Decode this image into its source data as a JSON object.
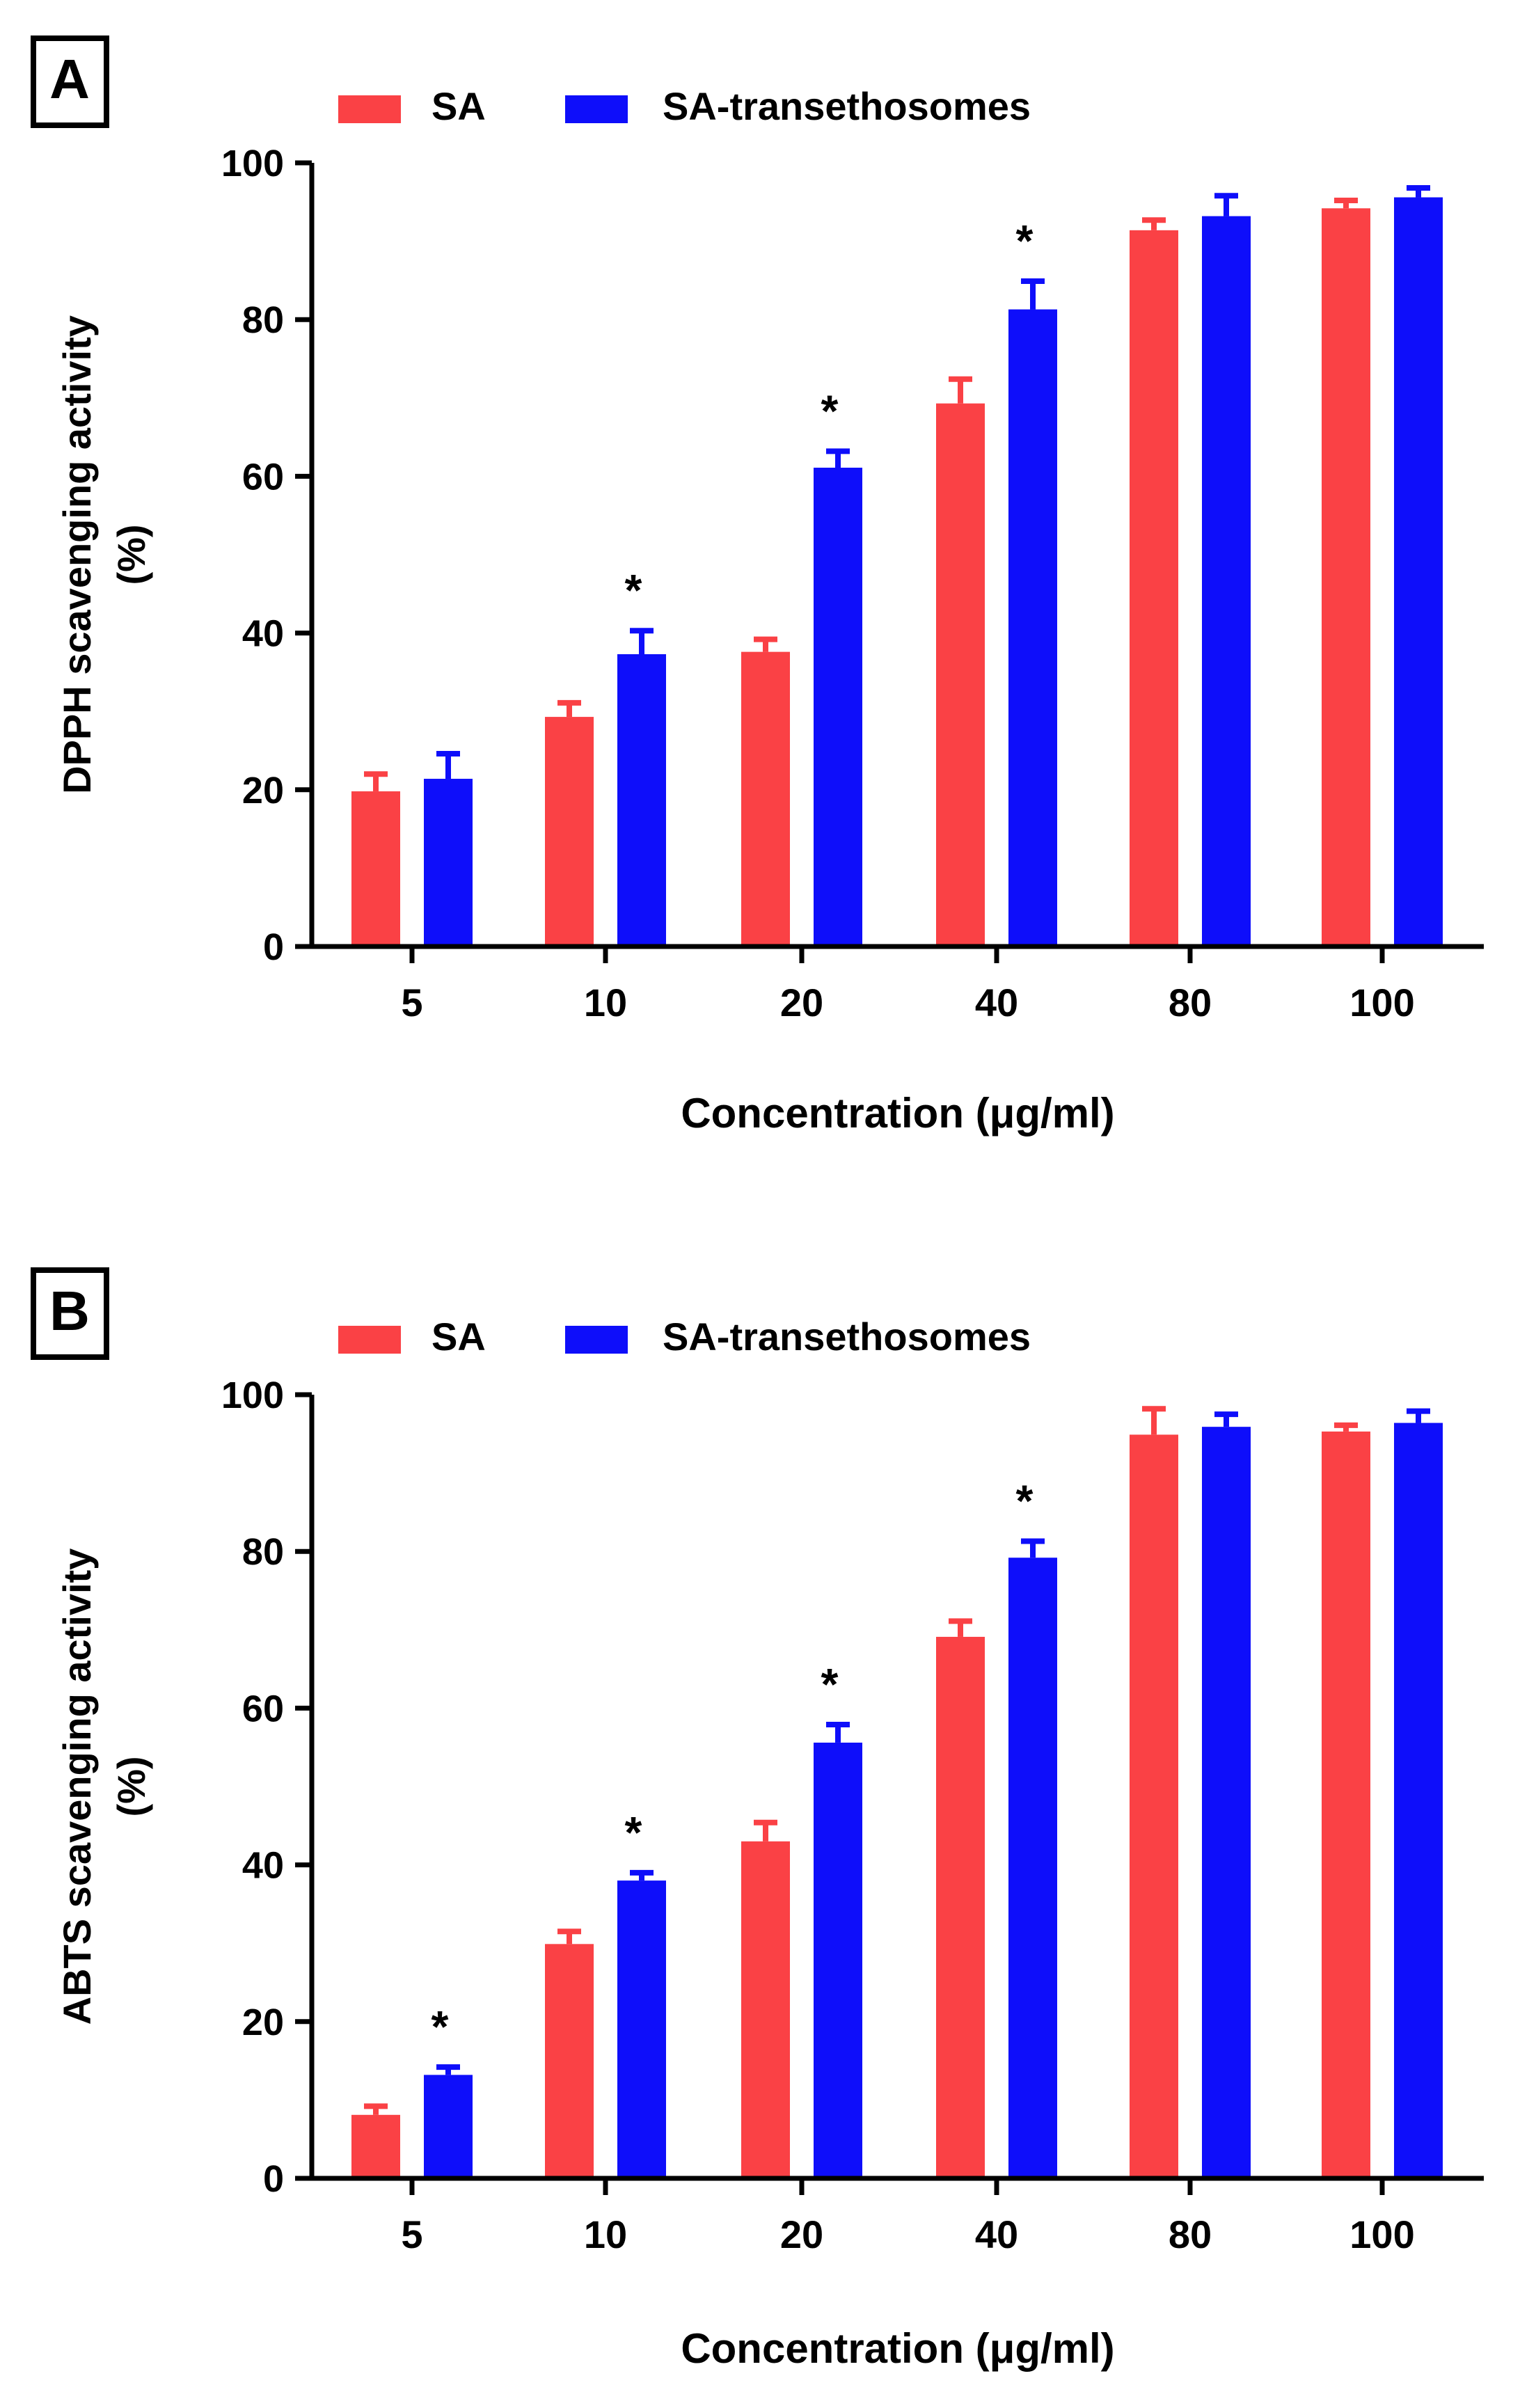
{
  "chart_data": [
    {
      "type": "bar",
      "panel_label": "A",
      "title": "",
      "xlabel": "Concentration (μg/ml)",
      "ylabel_line1": "DPPH scavenging activity",
      "ylabel_line2": "(%)",
      "ylim": [
        0,
        100
      ],
      "yticks": [
        0,
        20,
        40,
        60,
        80,
        100
      ],
      "categories": [
        "5",
        "10",
        "20",
        "40",
        "80",
        "100"
      ],
      "series": [
        {
          "name": "SA",
          "color": "#fa4145",
          "values": [
            19.8,
            29.3,
            37.6,
            69.3,
            91.4,
            94.2
          ],
          "errors": [
            2.2,
            1.8,
            1.6,
            3.1,
            1.3,
            1.0
          ]
        },
        {
          "name": "SA-transethosomes",
          "color": "#0e0efa",
          "values": [
            21.4,
            37.3,
            61.1,
            81.3,
            93.2,
            95.6
          ],
          "errors": [
            3.2,
            3.0,
            2.1,
            3.6,
            2.6,
            1.2
          ]
        }
      ],
      "significance_marker": "*",
      "significant_categories": [
        "10",
        "20",
        "40"
      ],
      "legend_position": "top-left"
    },
    {
      "type": "bar",
      "panel_label": "B",
      "title": "",
      "xlabel": "Concentration (μg/ml)",
      "ylabel_line1": "ABTS scavenging activity",
      "ylabel_line2": "(%)",
      "ylim": [
        0,
        100
      ],
      "yticks": [
        0,
        20,
        40,
        60,
        80,
        100
      ],
      "categories": [
        "5",
        "10",
        "20",
        "40",
        "80",
        "100"
      ],
      "series": [
        {
          "name": "SA",
          "color": "#fa4145",
          "values": [
            8.1,
            29.9,
            43.0,
            69.1,
            94.9,
            95.3
          ],
          "errors": [
            1.1,
            1.6,
            2.4,
            2.0,
            3.3,
            0.8
          ]
        },
        {
          "name": "SA-transethosomes",
          "color": "#0e0efa",
          "values": [
            13.2,
            38.0,
            55.6,
            79.2,
            95.9,
            96.4
          ],
          "errors": [
            1.0,
            1.0,
            2.3,
            2.1,
            1.6,
            1.5
          ]
        }
      ],
      "significance_marker": "*",
      "significant_categories": [
        "5",
        "10",
        "20",
        "40"
      ],
      "legend_position": "top-left"
    }
  ]
}
